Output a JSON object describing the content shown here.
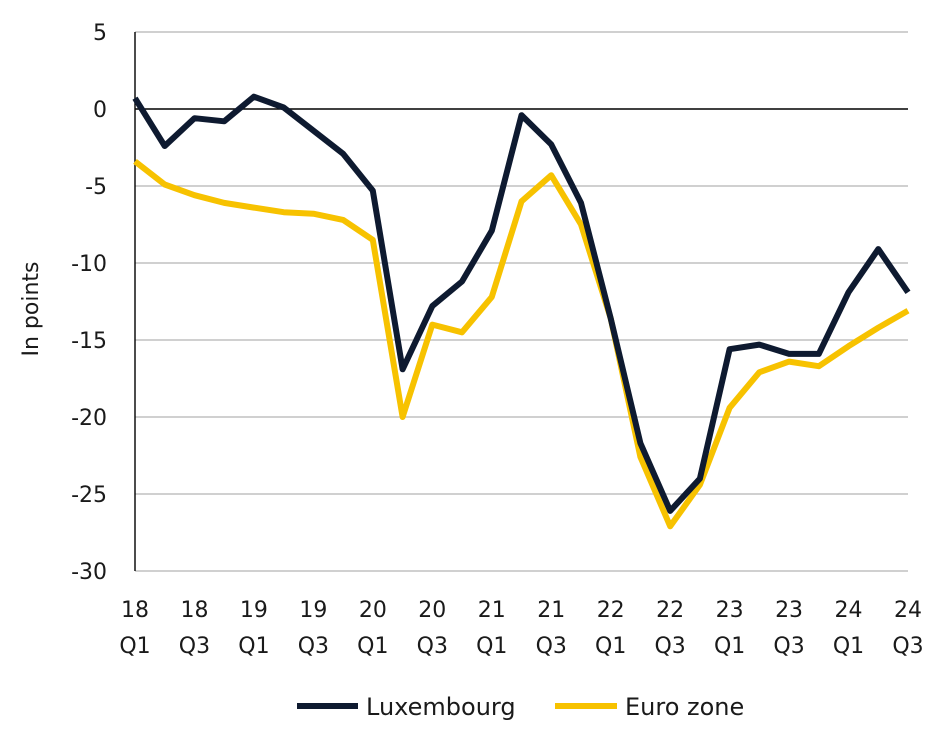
{
  "chart_data": {
    "type": "line",
    "title": "",
    "xlabel": "",
    "ylabel": "In points",
    "ylim": [
      -30,
      5
    ],
    "y_ticks": [
      5,
      0,
      -5,
      -10,
      -15,
      -20,
      -25,
      -30
    ],
    "grid": true,
    "legend_position": "bottom",
    "x": [
      "18 Q1",
      "18 Q2",
      "18 Q3",
      "18 Q4",
      "19 Q1",
      "19 Q2",
      "19 Q3",
      "19 Q4",
      "20 Q1",
      "20 Q2",
      "20 Q3",
      "20 Q4",
      "21 Q1",
      "21 Q2",
      "21 Q3",
      "21 Q4",
      "22 Q1",
      "22 Q2",
      "22 Q3",
      "22 Q4",
      "23 Q1",
      "23 Q2",
      "23 Q3",
      "23 Q4",
      "24 Q1",
      "24 Q2",
      "24 Q3"
    ],
    "x_tick_labels": [
      {
        "year": "18",
        "quarter": "Q1"
      },
      {
        "year": "18",
        "quarter": "Q3"
      },
      {
        "year": "19",
        "quarter": "Q1"
      },
      {
        "year": "19",
        "quarter": "Q3"
      },
      {
        "year": "20",
        "quarter": "Q1"
      },
      {
        "year": "20",
        "quarter": "Q3"
      },
      {
        "year": "21",
        "quarter": "Q1"
      },
      {
        "year": "21",
        "quarter": "Q3"
      },
      {
        "year": "22",
        "quarter": "Q1"
      },
      {
        "year": "22",
        "quarter": "Q3"
      },
      {
        "year": "23",
        "quarter": "Q1"
      },
      {
        "year": "23",
        "quarter": "Q3"
      },
      {
        "year": "24",
        "quarter": "Q1"
      },
      {
        "year": "24",
        "quarter": "Q3"
      }
    ],
    "series": [
      {
        "name": "Luxembourg",
        "color": "#0e1a30",
        "values": [
          0.7,
          -2.4,
          -0.6,
          -0.8,
          0.8,
          0.1,
          -1.4,
          -2.9,
          -5.3,
          -16.9,
          -12.8,
          -11.2,
          -7.9,
          -0.4,
          -2.3,
          -6.1,
          -13.6,
          -21.7,
          -26.1,
          -24.0,
          -15.6,
          -15.3,
          -15.9,
          -15.9,
          -11.9,
          -9.1,
          -11.9
        ]
      },
      {
        "name": "Euro zone",
        "color": "#f7c200",
        "values": [
          -3.4,
          -4.9,
          -5.6,
          -6.1,
          -6.4,
          -6.7,
          -6.8,
          -7.2,
          -8.5,
          -20.0,
          -14.0,
          -14.5,
          -12.2,
          -6.0,
          -4.3,
          -7.5,
          -13.6,
          -22.6,
          -27.1,
          -24.4,
          -19.4,
          -17.1,
          -16.4,
          -16.7,
          -15.4,
          -14.2,
          -13.1
        ]
      }
    ]
  }
}
